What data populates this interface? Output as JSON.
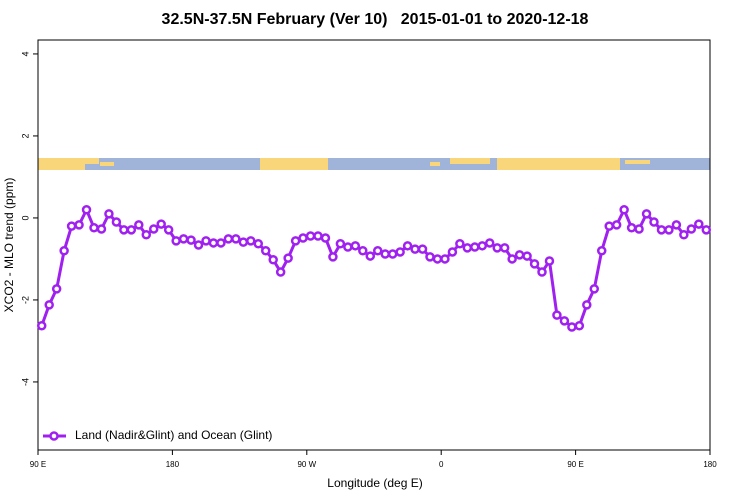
{
  "chart_data": {
    "type": "line",
    "title": "32.5N-37.5N February (Ver 10)   2015-01-01 to 2020-12-18",
    "xlabel": "Longitude (deg E)",
    "ylabel": "XCO2 - MLO trend (ppm)",
    "xlim": [
      90,
      540
    ],
    "ylim": [
      -5.66,
      4.34
    ],
    "xticks": [
      {
        "value": 90,
        "label": "90 E"
      },
      {
        "value": 180,
        "label": "180"
      },
      {
        "value": 270,
        "label": "90 W"
      },
      {
        "value": 360,
        "label": "0"
      },
      {
        "value": 450,
        "label": "90 E"
      },
      {
        "value": 540,
        "label": "180"
      }
    ],
    "yticks": [
      -4,
      -2,
      0,
      2,
      4
    ],
    "legend": "bottomleft",
    "x": [
      92.5,
      97.5,
      102.5,
      107.5,
      112.5,
      117.5,
      122.5,
      127.5,
      132.5,
      137.5,
      142.5,
      147.5,
      152.5,
      157.5,
      162.5,
      167.5,
      172.5,
      177.5,
      182.5,
      187.5,
      192.5,
      197.5,
      202.5,
      207.5,
      212.5,
      217.5,
      222.5,
      227.5,
      232.5,
      237.5,
      242.5,
      247.5,
      252.5,
      257.5,
      262.5,
      267.5,
      272.5,
      277.5,
      282.5,
      287.5,
      292.5,
      297.5,
      302.5,
      307.5,
      312.5,
      317.5,
      322.5,
      327.5,
      332.5,
      337.5,
      342.5,
      347.5,
      352.5,
      357.5,
      362.5,
      367.5,
      372.5,
      377.5,
      382.5,
      387.5,
      392.5,
      397.5,
      402.5,
      407.5,
      412.5,
      417.5,
      422.5,
      427.5,
      432.5,
      437.5,
      442.5,
      447.5,
      452.5,
      457.5,
      462.5,
      467.5,
      472.5,
      477.5,
      482.5,
      487.5,
      492.5,
      497.5,
      502.5,
      507.5,
      512.5,
      517.5,
      522.5,
      527.5,
      532.5,
      537.5
    ],
    "series": [
      {
        "name": "Land (Nadir&Glint) and Ocean (Glint)",
        "color": "#a020f0",
        "values": [
          -2.63,
          -2.12,
          -1.73,
          -0.8,
          -0.2,
          -0.17,
          0.2,
          -0.24,
          -0.27,
          0.1,
          -0.1,
          -0.29,
          -0.29,
          -0.17,
          -0.41,
          -0.27,
          -0.15,
          -0.29,
          -0.56,
          -0.51,
          -0.54,
          -0.66,
          -0.56,
          -0.61,
          -0.61,
          -0.51,
          -0.51,
          -0.59,
          -0.56,
          -0.63,
          -0.8,
          -1.02,
          -1.32,
          -0.98,
          -0.56,
          -0.49,
          -0.44,
          -0.44,
          -0.49,
          -0.95,
          -0.63,
          -0.71,
          -0.68,
          -0.8,
          -0.93,
          -0.8,
          -0.88,
          -0.88,
          -0.83,
          -0.68,
          -0.76,
          -0.76,
          -0.95,
          -1.0,
          -1.0,
          -0.83,
          -0.63,
          -0.73,
          -0.71,
          -0.68,
          -0.61,
          -0.73,
          -0.73,
          -1.0,
          -0.9,
          -0.93,
          -1.12,
          -1.32,
          -1.05,
          -2.37,
          -2.51,
          -2.66,
          -2.63,
          -2.12,
          -1.73,
          -0.8,
          -0.2,
          -0.17,
          0.2,
          -0.24,
          -0.27,
          0.1,
          -0.1,
          -0.29,
          -0.29,
          -0.17,
          -0.41,
          -0.27,
          -0.15,
          -0.29
        ]
      }
    ]
  }
}
